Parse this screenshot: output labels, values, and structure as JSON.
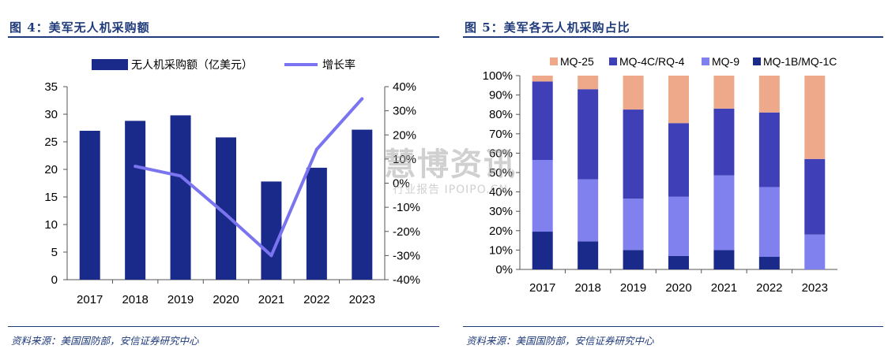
{
  "left": {
    "title": "图 4：美军无人机采购额",
    "source": "资料来源：美国国防部，安信证券研究中心"
  },
  "right": {
    "title": "图 5：美军各无人机采购占比",
    "source": "资料来源：美国国防部，安信证券研究中心"
  },
  "watermark": {
    "logo": "慧博资讯",
    "sub": "行业报告 IPOIPO.CN"
  },
  "colors": {
    "bar": "#1a2a8a",
    "line": "#7b74f0",
    "mq1b": "#1a2a8a",
    "mq9": "#8080ef",
    "mq4c": "#3f3fb8",
    "mq25": "#eea98a",
    "title": "#1f3b7a"
  },
  "chart_data": [
    {
      "type": "bar",
      "categories": [
        "2017",
        "2018",
        "2019",
        "2020",
        "2021",
        "2022",
        "2023"
      ],
      "series": [
        {
          "name": "无人机采购额（亿美元）",
          "type": "bar",
          "axis": "left",
          "values": [
            27.0,
            28.8,
            29.8,
            25.8,
            17.8,
            20.3,
            27.2
          ]
        },
        {
          "name": "增长率",
          "type": "line",
          "axis": "right",
          "unit": "%",
          "values": [
            null,
            7,
            3,
            -13,
            -30,
            14,
            35
          ]
        }
      ],
      "ylim": [
        0,
        35
      ],
      "yticks": [
        "0",
        "5",
        "10",
        "15",
        "20",
        "25",
        "30",
        "35"
      ],
      "y2lim": [
        -40,
        40
      ],
      "y2ticks": [
        "-40%",
        "-30%",
        "-20%",
        "-10%",
        "0%",
        "10%",
        "20%",
        "30%",
        "40%"
      ],
      "legend_position": "top",
      "grid": false
    },
    {
      "type": "bar",
      "stacked": true,
      "percent": true,
      "categories": [
        "2017",
        "2018",
        "2019",
        "2020",
        "2021",
        "2022",
        "2023"
      ],
      "series": [
        {
          "name": "MQ-1B/MQ-1C",
          "values": [
            19.5,
            14.5,
            10.0,
            7.0,
            10.0,
            6.5,
            0.0
          ]
        },
        {
          "name": "MQ-9",
          "values": [
            37.0,
            32.0,
            26.5,
            30.5,
            38.5,
            36.0,
            18.0
          ]
        },
        {
          "name": "MQ-4C/RQ-4",
          "values": [
            40.5,
            46.5,
            46.0,
            38.0,
            34.5,
            38.5,
            39.0
          ]
        },
        {
          "name": "MQ-25",
          "values": [
            3.0,
            7.0,
            17.5,
            24.5,
            17.0,
            19.0,
            43.0
          ]
        }
      ],
      "legend_order": [
        "MQ-25",
        "MQ-4C/RQ-4",
        "MQ-9",
        "MQ-1B/MQ-1C"
      ],
      "ylim": [
        0,
        100
      ],
      "yticks": [
        "0%",
        "10%",
        "20%",
        "30%",
        "40%",
        "50%",
        "60%",
        "70%",
        "80%",
        "90%",
        "100%"
      ],
      "legend_position": "top",
      "grid": false
    }
  ]
}
